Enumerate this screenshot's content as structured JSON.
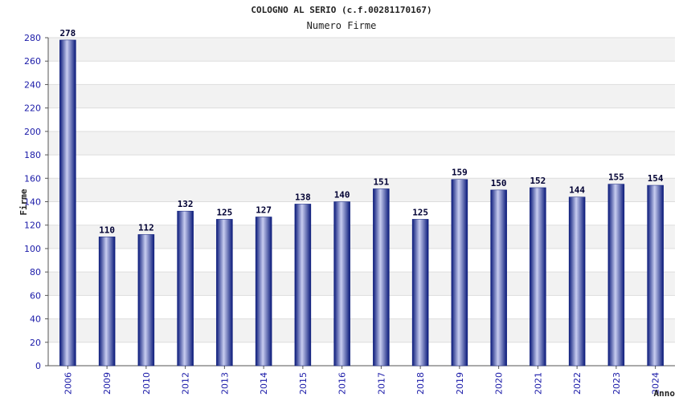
{
  "chart_data": {
    "type": "bar",
    "title": "COLOGNO AL SERIO (c.f.00281170167)",
    "subtitle": "Numero Firme",
    "xlabel": "Anno",
    "ylabel": "Firme",
    "ylim": [
      0,
      280
    ],
    "yticks": [
      0,
      20,
      40,
      60,
      80,
      100,
      120,
      140,
      160,
      180,
      200,
      220,
      240,
      260,
      280
    ],
    "categories": [
      "2006",
      "2009",
      "2010",
      "2012",
      "2013",
      "2014",
      "2015",
      "2016",
      "2017",
      "2018",
      "2019",
      "2020",
      "2021",
      "2022",
      "2023",
      "2024"
    ],
    "values": [
      278,
      110,
      112,
      132,
      125,
      127,
      138,
      140,
      151,
      125,
      159,
      150,
      152,
      144,
      155,
      154
    ],
    "grid": true,
    "colors": {
      "bar_dark": "#0a1a7a",
      "bar_light": "#c8cdf0",
      "band": "#f2f2f2",
      "tick_text": "#1a1aa8"
    }
  }
}
